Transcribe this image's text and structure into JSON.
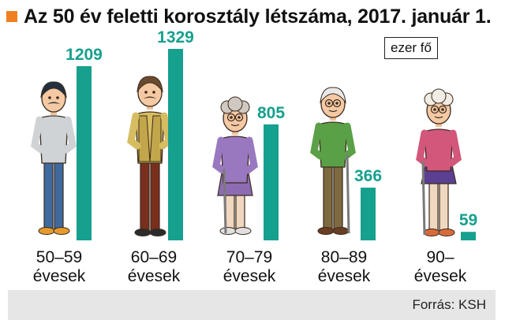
{
  "title": "Az 50 év feletti korosztály létszáma, 2017. január 1.",
  "unit": "ezer fő",
  "source": "Forrás: KSH",
  "colors": {
    "accent": "#F07F1F",
    "bar": "#16A08E",
    "value_text": "#16A08E"
  },
  "chart_data": {
    "type": "bar",
    "title": "Az 50 év feletti korosztály létszáma, 2017. január 1.",
    "unit": "ezer fő",
    "categories": [
      [
        "50–59",
        "évesek"
      ],
      [
        "60–69",
        "évesek"
      ],
      [
        "70–79",
        "évesek"
      ],
      [
        "80–89",
        "évesek"
      ],
      [
        "90–",
        "évesek"
      ]
    ],
    "values": [
      1209,
      1329,
      805,
      366,
      59
    ],
    "grid": false,
    "legend": "none"
  },
  "illustrations": [
    {
      "icon": "man-middle-aged-illustration"
    },
    {
      "icon": "man-older-mustache-illustration"
    },
    {
      "icon": "woman-elderly-glasses-illustration"
    },
    {
      "icon": "man-elderly-cane-illustration"
    },
    {
      "icon": "woman-very-old-cane-illustration"
    }
  ]
}
